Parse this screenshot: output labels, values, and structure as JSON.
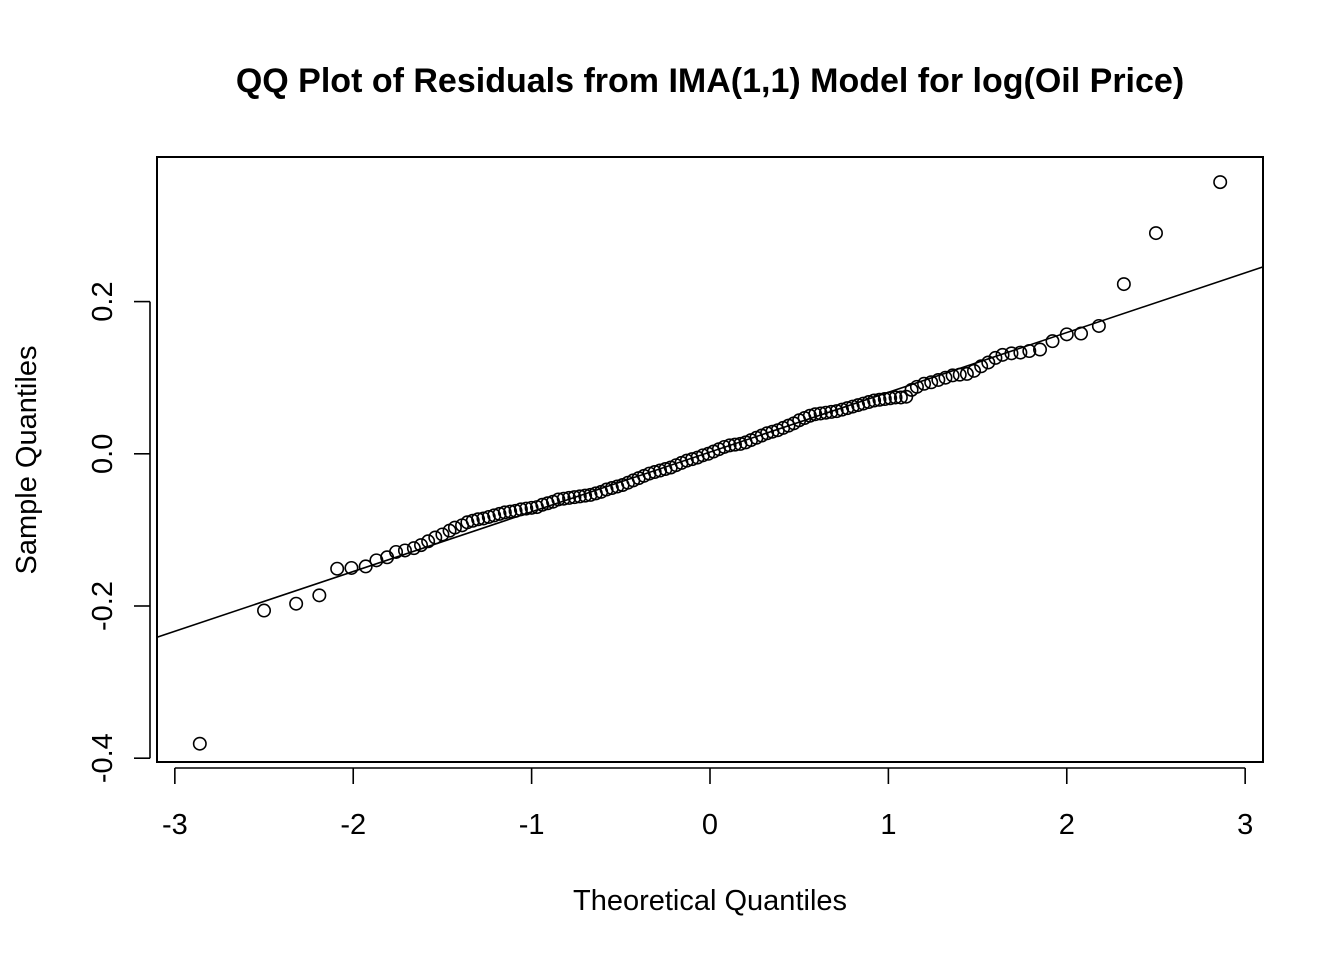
{
  "chart_data": {
    "type": "scatter",
    "title": "QQ Plot of Residuals from IMA(1,1) Model for log(Oil Price)",
    "xlabel": "Theoretical Quantiles",
    "ylabel": "Sample Quantiles",
    "xlim": [
      -3.1,
      3.1
    ],
    "ylim": [
      -0.405,
      0.39
    ],
    "xticks": [
      -3,
      -2,
      -1,
      0,
      1,
      2,
      3
    ],
    "xtick_labels": [
      "-3",
      "-2",
      "-1",
      "0",
      "1",
      "2",
      "3"
    ],
    "yticks": [
      -0.4,
      -0.2,
      0.0,
      0.2
    ],
    "ytick_labels": [
      "-0.4",
      "-0.2",
      "0.0",
      "0.2"
    ],
    "grid": false,
    "legend": "none",
    "point_style": "open-circle",
    "reference_line": {
      "slope": 0.0785,
      "intercept": 0.0023
    },
    "points": [
      [
        -2.86,
        -0.381
      ],
      [
        -2.5,
        -0.206
      ],
      [
        -2.32,
        -0.197
      ],
      [
        -2.19,
        -0.186
      ],
      [
        -2.09,
        -0.151
      ],
      [
        -2.01,
        -0.15
      ],
      [
        -1.93,
        -0.148
      ],
      [
        -1.87,
        -0.14
      ],
      [
        -1.81,
        -0.136
      ],
      [
        -1.76,
        -0.129
      ],
      [
        -1.71,
        -0.127
      ],
      [
        -1.66,
        -0.124
      ],
      [
        -1.62,
        -0.12
      ],
      [
        -1.58,
        -0.115
      ],
      [
        -1.54,
        -0.11
      ],
      [
        -1.5,
        -0.106
      ],
      [
        -1.46,
        -0.101
      ],
      [
        -1.43,
        -0.097
      ],
      [
        -1.39,
        -0.094
      ],
      [
        -1.36,
        -0.09
      ],
      [
        -1.33,
        -0.088
      ],
      [
        -1.3,
        -0.086
      ],
      [
        -1.27,
        -0.085
      ],
      [
        -1.24,
        -0.083
      ],
      [
        -1.21,
        -0.081
      ],
      [
        -1.18,
        -0.079
      ],
      [
        -1.15,
        -0.077
      ],
      [
        -1.12,
        -0.076
      ],
      [
        -1.09,
        -0.075
      ],
      [
        -1.06,
        -0.073
      ],
      [
        -1.03,
        -0.072
      ],
      [
        -1.0,
        -0.071
      ],
      [
        -0.97,
        -0.07
      ],
      [
        -0.94,
        -0.067
      ],
      [
        -0.91,
        -0.065
      ],
      [
        -0.88,
        -0.063
      ],
      [
        -0.85,
        -0.06
      ],
      [
        -0.82,
        -0.059
      ],
      [
        -0.79,
        -0.058
      ],
      [
        -0.76,
        -0.057
      ],
      [
        -0.73,
        -0.056
      ],
      [
        -0.7,
        -0.055
      ],
      [
        -0.67,
        -0.054
      ],
      [
        -0.64,
        -0.052
      ],
      [
        -0.61,
        -0.05
      ],
      [
        -0.58,
        -0.047
      ],
      [
        -0.55,
        -0.045
      ],
      [
        -0.52,
        -0.043
      ],
      [
        -0.49,
        -0.041
      ],
      [
        -0.46,
        -0.038
      ],
      [
        -0.43,
        -0.035
      ],
      [
        -0.4,
        -0.032
      ],
      [
        -0.37,
        -0.029
      ],
      [
        -0.34,
        -0.026
      ],
      [
        -0.31,
        -0.024
      ],
      [
        -0.28,
        -0.022
      ],
      [
        -0.25,
        -0.02
      ],
      [
        -0.22,
        -0.018
      ],
      [
        -0.19,
        -0.015
      ],
      [
        -0.16,
        -0.012
      ],
      [
        -0.13,
        -0.009
      ],
      [
        -0.1,
        -0.007
      ],
      [
        -0.07,
        -0.005
      ],
      [
        -0.04,
        -0.002
      ],
      [
        -0.01,
        0.0
      ],
      [
        0.02,
        0.003
      ],
      [
        0.05,
        0.006
      ],
      [
        0.08,
        0.009
      ],
      [
        0.11,
        0.011
      ],
      [
        0.14,
        0.012
      ],
      [
        0.17,
        0.013
      ],
      [
        0.2,
        0.015
      ],
      [
        0.23,
        0.018
      ],
      [
        0.26,
        0.021
      ],
      [
        0.29,
        0.024
      ],
      [
        0.32,
        0.027
      ],
      [
        0.35,
        0.029
      ],
      [
        0.38,
        0.031
      ],
      [
        0.41,
        0.034
      ],
      [
        0.44,
        0.037
      ],
      [
        0.47,
        0.04
      ],
      [
        0.5,
        0.044
      ],
      [
        0.53,
        0.047
      ],
      [
        0.56,
        0.05
      ],
      [
        0.59,
        0.052
      ],
      [
        0.62,
        0.053
      ],
      [
        0.65,
        0.054
      ],
      [
        0.68,
        0.055
      ],
      [
        0.71,
        0.056
      ],
      [
        0.74,
        0.058
      ],
      [
        0.77,
        0.06
      ],
      [
        0.8,
        0.062
      ],
      [
        0.83,
        0.064
      ],
      [
        0.86,
        0.066
      ],
      [
        0.89,
        0.068
      ],
      [
        0.92,
        0.07
      ],
      [
        0.95,
        0.071
      ],
      [
        0.98,
        0.072
      ],
      [
        1.01,
        0.073
      ],
      [
        1.04,
        0.074
      ],
      [
        1.07,
        0.074
      ],
      [
        1.1,
        0.075
      ],
      [
        1.13,
        0.084
      ],
      [
        1.16,
        0.088
      ],
      [
        1.2,
        0.092
      ],
      [
        1.24,
        0.094
      ],
      [
        1.28,
        0.097
      ],
      [
        1.32,
        0.1
      ],
      [
        1.36,
        0.103
      ],
      [
        1.4,
        0.104
      ],
      [
        1.44,
        0.105
      ],
      [
        1.48,
        0.109
      ],
      [
        1.52,
        0.115
      ],
      [
        1.56,
        0.12
      ],
      [
        1.6,
        0.126
      ],
      [
        1.64,
        0.13
      ],
      [
        1.69,
        0.132
      ],
      [
        1.74,
        0.133
      ],
      [
        1.79,
        0.135
      ],
      [
        1.85,
        0.137
      ],
      [
        1.92,
        0.148
      ],
      [
        2.0,
        0.157
      ],
      [
        2.08,
        0.158
      ],
      [
        2.18,
        0.168
      ],
      [
        2.32,
        0.223
      ],
      [
        2.5,
        0.29
      ],
      [
        2.86,
        0.357
      ]
    ]
  }
}
